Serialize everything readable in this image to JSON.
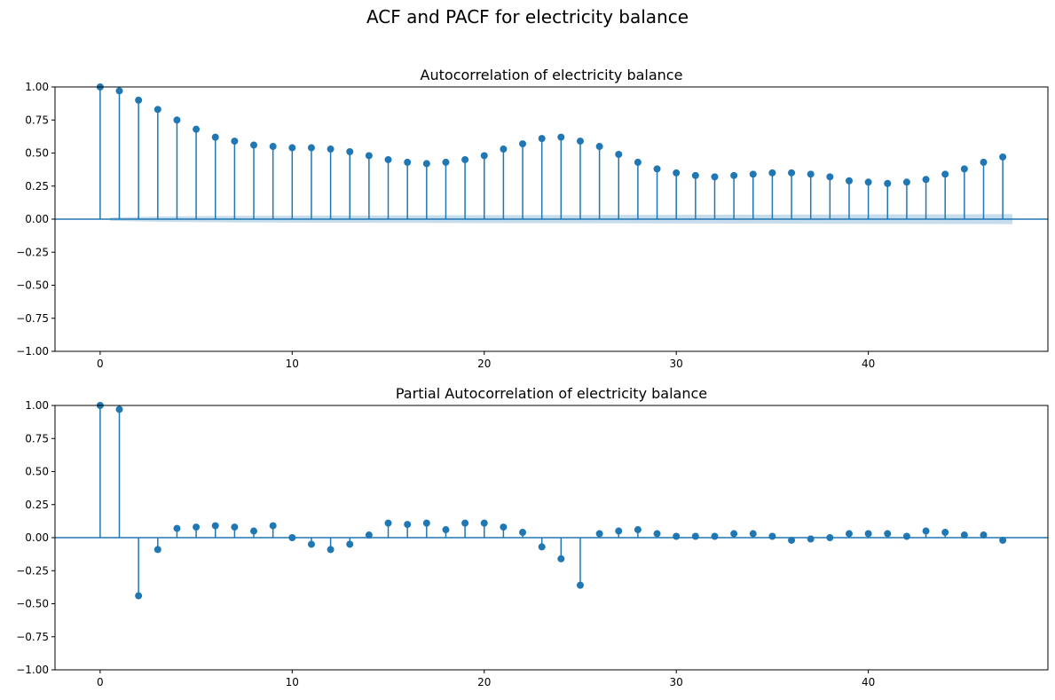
{
  "figure": {
    "suptitle": "ACF and PACF for electricity balance"
  },
  "colors": {
    "stem": "#1f77b4",
    "confidence_band": "#1f77b4",
    "axis": "#000000"
  },
  "chart_data": [
    {
      "type": "stem",
      "title": "Autocorrelation of electricity balance",
      "xlabel": "",
      "ylabel": "",
      "xlim": [
        -2.35,
        49.35
      ],
      "ylim": [
        -1.0,
        1.0
      ],
      "xticks": [
        0,
        10,
        20,
        30,
        40
      ],
      "xtick_labels": [
        "0",
        "10",
        "20",
        "30",
        "40"
      ],
      "yticks": [
        1.0,
        0.75,
        0.5,
        0.25,
        0.0,
        -0.25,
        -0.5,
        -0.75,
        -1.0
      ],
      "ytick_labels": [
        "1.00",
        "0.75",
        "0.50",
        "0.25",
        "0.00",
        "−0.25",
        "−0.50",
        "−0.75",
        "−1.00"
      ],
      "grid": false,
      "lags": [
        0,
        1,
        2,
        3,
        4,
        5,
        6,
        7,
        8,
        9,
        10,
        11,
        12,
        13,
        14,
        15,
        16,
        17,
        18,
        19,
        20,
        21,
        22,
        23,
        24,
        25,
        26,
        27,
        28,
        29,
        30,
        31,
        32,
        33,
        34,
        35,
        36,
        37,
        38,
        39,
        40,
        41,
        42,
        43,
        44,
        45,
        46,
        47
      ],
      "values": [
        1.0,
        0.97,
        0.9,
        0.83,
        0.75,
        0.68,
        0.62,
        0.59,
        0.56,
        0.55,
        0.54,
        0.54,
        0.53,
        0.51,
        0.48,
        0.45,
        0.43,
        0.42,
        0.43,
        0.45,
        0.48,
        0.53,
        0.57,
        0.61,
        0.62,
        0.59,
        0.55,
        0.49,
        0.43,
        0.38,
        0.35,
        0.33,
        0.32,
        0.33,
        0.34,
        0.35,
        0.35,
        0.34,
        0.32,
        0.29,
        0.28,
        0.27,
        0.28,
        0.3,
        0.34,
        0.38,
        0.43,
        0.47
      ],
      "confidence_band": {
        "lags": [
          0.5,
          3,
          7,
          12,
          20,
          30,
          40,
          47.5
        ],
        "upper": [
          0.012,
          0.02,
          0.025,
          0.027,
          0.03,
          0.033,
          0.036,
          0.038
        ],
        "lower": [
          -0.012,
          -0.02,
          -0.025,
          -0.027,
          -0.03,
          -0.033,
          -0.036,
          -0.038
        ]
      }
    },
    {
      "type": "stem",
      "title": "Partial Autocorrelation of electricity balance",
      "xlabel": "",
      "ylabel": "",
      "xlim": [
        -2.35,
        49.35
      ],
      "ylim": [
        -1.0,
        1.0
      ],
      "xticks": [
        0,
        10,
        20,
        30,
        40
      ],
      "xtick_labels": [
        "0",
        "10",
        "20",
        "30",
        "40"
      ],
      "yticks": [
        1.0,
        0.75,
        0.5,
        0.25,
        0.0,
        -0.25,
        -0.5,
        -0.75,
        -1.0
      ],
      "ytick_labels": [
        "1.00",
        "0.75",
        "0.50",
        "0.25",
        "0.00",
        "−0.25",
        "−0.50",
        "−0.75",
        "−1.00"
      ],
      "grid": false,
      "lags": [
        0,
        1,
        2,
        3,
        4,
        5,
        6,
        7,
        8,
        9,
        10,
        11,
        12,
        13,
        14,
        15,
        16,
        17,
        18,
        19,
        20,
        21,
        22,
        23,
        24,
        25,
        26,
        27,
        28,
        29,
        30,
        31,
        32,
        33,
        34,
        35,
        36,
        37,
        38,
        39,
        40,
        41,
        42,
        43,
        44,
        45,
        46,
        47
      ],
      "values": [
        1.0,
        0.97,
        -0.44,
        -0.09,
        0.07,
        0.08,
        0.09,
        0.08,
        0.05,
        0.09,
        0.0,
        -0.05,
        -0.09,
        -0.05,
        0.02,
        0.11,
        0.1,
        0.11,
        0.06,
        0.11,
        0.11,
        0.08,
        0.04,
        -0.07,
        -0.16,
        -0.36,
        0.03,
        0.05,
        0.06,
        0.03,
        0.01,
        0.01,
        0.01,
        0.03,
        0.03,
        0.01,
        -0.02,
        -0.01,
        0.0,
        0.03,
        0.03,
        0.03,
        0.01,
        0.05,
        0.04,
        0.02,
        0.02,
        -0.02
      ]
    }
  ]
}
